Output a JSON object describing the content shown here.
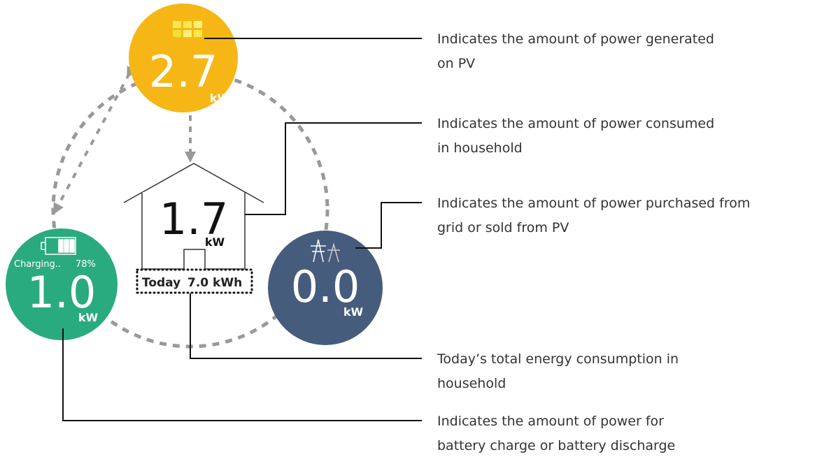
{
  "pv": {
    "value": "2.7",
    "unit": "kW"
  },
  "house": {
    "value": "1.7",
    "unit": "kW",
    "today_label": "Today",
    "today_value": "7.0 kWh"
  },
  "battery": {
    "status": "Charging..",
    "percent": "78%",
    "value": "1.0",
    "unit": "kW"
  },
  "grid": {
    "value": "0.0",
    "unit": "kW"
  },
  "callouts": [
    {
      "lines": [
        "Indicates the amount of power generated",
        "on PV"
      ]
    },
    {
      "lines": [
        "Indicates the amount of power consumed",
        "in household"
      ]
    },
    {
      "lines": [
        "Indicates the amount of power purchased from",
        "grid or sold from PV"
      ]
    },
    {
      "lines": [
        "Today’s total energy consumption in",
        "household"
      ]
    },
    {
      "lines": [
        "Indicates the amount of power for",
        "battery charge or battery discharge"
      ]
    }
  ]
}
